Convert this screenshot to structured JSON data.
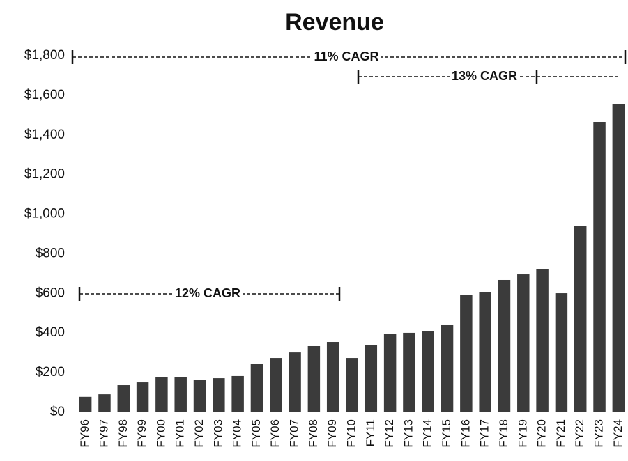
{
  "chart_data": {
    "type": "bar",
    "title": "Revenue",
    "categories": [
      "FY96",
      "FY97",
      "FY98",
      "FY99",
      "FY00",
      "FY01",
      "FY02",
      "FY03",
      "FY04",
      "FY05",
      "FY06",
      "FY07",
      "FY08",
      "FY09",
      "FY10",
      "FY11",
      "FY12",
      "FY13",
      "FY14",
      "FY15",
      "FY16",
      "FY17",
      "FY18",
      "FY19",
      "FY20",
      "FY21",
      "FY22",
      "FY23",
      "FY24"
    ],
    "values": [
      78,
      91,
      137,
      151,
      179,
      179,
      165,
      172,
      183,
      243,
      274,
      302,
      334,
      355,
      274,
      341,
      397,
      401,
      411,
      443,
      591,
      605,
      668,
      696,
      721,
      601,
      939,
      1466,
      1554
    ],
    "color": "#3b3b3b",
    "ylim": [
      0,
      1800
    ],
    "yticks": [
      {
        "value": 0,
        "label": "$0"
      },
      {
        "value": 200,
        "label": "$200"
      },
      {
        "value": 400,
        "label": "$400"
      },
      {
        "value": 600,
        "label": "$600"
      },
      {
        "value": 800,
        "label": "$800"
      },
      {
        "value": 1000,
        "label": "$1,000"
      },
      {
        "value": 1200,
        "label": "$1,200"
      },
      {
        "value": 1400,
        "label": "$1,400"
      },
      {
        "value": 1600,
        "label": "$1,600"
      },
      {
        "value": 1800,
        "label": "$1,800"
      }
    ],
    "grid": false,
    "annotations": [
      "11% CAGR",
      "13% CAGR",
      "12% CAGR"
    ]
  }
}
